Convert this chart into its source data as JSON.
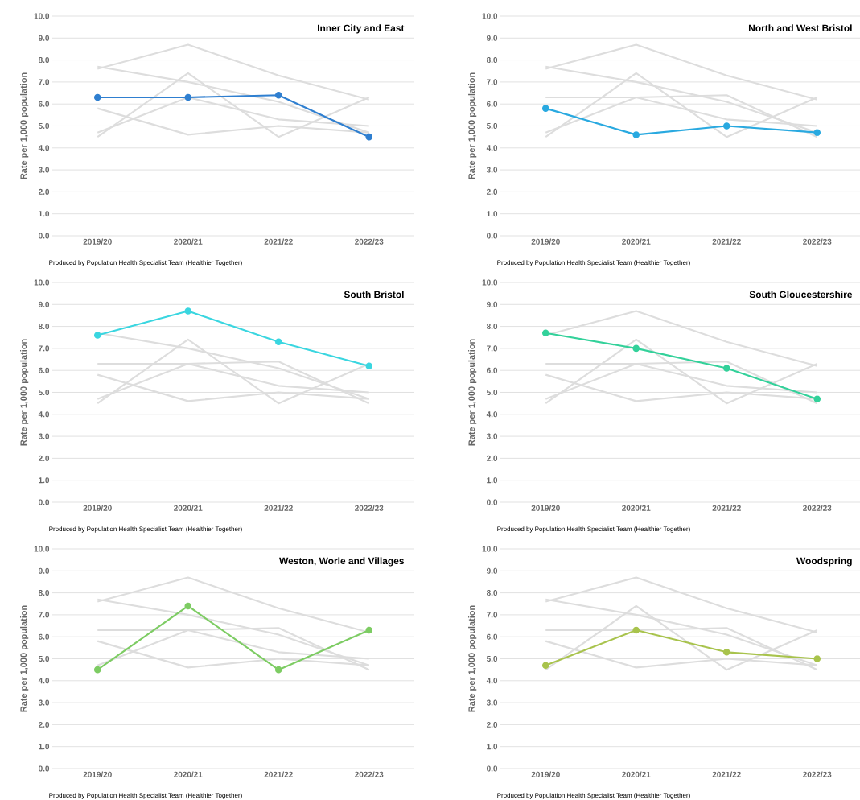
{
  "chart_data": [
    {
      "type": "line",
      "title": "Inner City and East",
      "ylabel": "Rate per 1,000 population",
      "categories": [
        "2019/20",
        "2020/21",
        "2021/22",
        "2022/23"
      ],
      "ylim": [
        0,
        10
      ],
      "yticks": [
        {
          "value": 0,
          "label": "0.0"
        },
        {
          "value": 1,
          "label": "1.0"
        },
        {
          "value": 2,
          "label": "2.0"
        },
        {
          "value": 3,
          "label": "3.0"
        },
        {
          "value": 4,
          "label": "4.0"
        },
        {
          "value": 5,
          "label": "5.0"
        },
        {
          "value": 6,
          "label": "6.0"
        },
        {
          "value": 7,
          "label": "7.0"
        },
        {
          "value": 8,
          "label": "8.0"
        },
        {
          "value": 9,
          "label": "9.0"
        },
        {
          "value": 10,
          "label": "10.0"
        }
      ],
      "grid": "y",
      "annotations": [
        "Produced by Population Health Specialist Team (Healthier Together)"
      ],
      "series": [
        {
          "color": "#dddddd",
          "values": [
            5.8,
            4.6,
            5.0,
            4.7
          ],
          "marker": "none"
        },
        {
          "color": "#dddddd",
          "values": [
            7.6,
            8.7,
            7.3,
            6.2
          ],
          "marker": "none"
        },
        {
          "color": "#dddddd",
          "values": [
            7.7,
            7.0,
            6.1,
            4.7
          ],
          "marker": "none"
        },
        {
          "color": "#dddddd",
          "values": [
            4.5,
            7.4,
            4.5,
            6.3
          ],
          "marker": "none"
        },
        {
          "color": "#dddddd",
          "values": [
            4.7,
            6.3,
            5.3,
            5.0
          ],
          "marker": "none"
        },
        {
          "color": "#2f7fd0",
          "values": [
            6.3,
            6.3,
            6.4,
            4.5
          ],
          "marker": "circle"
        }
      ]
    },
    {
      "type": "line",
      "title": "North and West Bristol",
      "ylabel": "Rate per 1,000 population",
      "categories": [
        "2019/20",
        "2020/21",
        "2021/22",
        "2022/23"
      ],
      "ylim": [
        0,
        10
      ],
      "yticks": [
        {
          "value": 0,
          "label": "0.0"
        },
        {
          "value": 1,
          "label": "1.0"
        },
        {
          "value": 2,
          "label": "2.0"
        },
        {
          "value": 3,
          "label": "3.0"
        },
        {
          "value": 4,
          "label": "4.0"
        },
        {
          "value": 5,
          "label": "5.0"
        },
        {
          "value": 6,
          "label": "6.0"
        },
        {
          "value": 7,
          "label": "7.0"
        },
        {
          "value": 8,
          "label": "8.0"
        },
        {
          "value": 9,
          "label": "9.0"
        },
        {
          "value": 10,
          "label": "10.0"
        }
      ],
      "grid": "y",
      "annotations": [
        "Produced by Population Health Specialist Team (Healthier Together)"
      ],
      "series": [
        {
          "color": "#dddddd",
          "values": [
            6.3,
            6.3,
            6.4,
            4.5
          ],
          "marker": "none"
        },
        {
          "color": "#dddddd",
          "values": [
            7.6,
            8.7,
            7.3,
            6.2
          ],
          "marker": "none"
        },
        {
          "color": "#dddddd",
          "values": [
            7.7,
            7.0,
            6.1,
            4.7
          ],
          "marker": "none"
        },
        {
          "color": "#dddddd",
          "values": [
            4.5,
            7.4,
            4.5,
            6.3
          ],
          "marker": "none"
        },
        {
          "color": "#dddddd",
          "values": [
            4.7,
            6.3,
            5.3,
            5.0
          ],
          "marker": "none"
        },
        {
          "color": "#29a9e0",
          "values": [
            5.8,
            4.6,
            5.0,
            4.7
          ],
          "marker": "circle"
        }
      ]
    },
    {
      "type": "line",
      "title": "South Bristol",
      "ylabel": "Rate per 1,000 population",
      "categories": [
        "2019/20",
        "2020/21",
        "2021/22",
        "2022/23"
      ],
      "ylim": [
        0,
        10
      ],
      "yticks": [
        {
          "value": 0,
          "label": "0.0"
        },
        {
          "value": 1,
          "label": "1.0"
        },
        {
          "value": 2,
          "label": "2.0"
        },
        {
          "value": 3,
          "label": "3.0"
        },
        {
          "value": 4,
          "label": "4.0"
        },
        {
          "value": 5,
          "label": "5.0"
        },
        {
          "value": 6,
          "label": "6.0"
        },
        {
          "value": 7,
          "label": "7.0"
        },
        {
          "value": 8,
          "label": "8.0"
        },
        {
          "value": 9,
          "label": "9.0"
        },
        {
          "value": 10,
          "label": "10.0"
        }
      ],
      "grid": "y",
      "annotations": [
        "Produced by Population Health Specialist Team (Healthier Together)"
      ],
      "series": [
        {
          "color": "#dddddd",
          "values": [
            6.3,
            6.3,
            6.4,
            4.5
          ],
          "marker": "none"
        },
        {
          "color": "#dddddd",
          "values": [
            5.8,
            4.6,
            5.0,
            4.7
          ],
          "marker": "none"
        },
        {
          "color": "#dddddd",
          "values": [
            7.7,
            7.0,
            6.1,
            4.7
          ],
          "marker": "none"
        },
        {
          "color": "#dddddd",
          "values": [
            4.5,
            7.4,
            4.5,
            6.3
          ],
          "marker": "none"
        },
        {
          "color": "#dddddd",
          "values": [
            4.7,
            6.3,
            5.3,
            5.0
          ],
          "marker": "none"
        },
        {
          "color": "#3ad6e0",
          "values": [
            7.6,
            8.7,
            7.3,
            6.2
          ],
          "marker": "circle"
        }
      ]
    },
    {
      "type": "line",
      "title": "South Gloucestershire",
      "ylabel": "Rate per 1,000 population",
      "categories": [
        "2019/20",
        "2020/21",
        "2021/22",
        "2022/23"
      ],
      "ylim": [
        0,
        10
      ],
      "yticks": [
        {
          "value": 0,
          "label": "0.0"
        },
        {
          "value": 1,
          "label": "1.0"
        },
        {
          "value": 2,
          "label": "2.0"
        },
        {
          "value": 3,
          "label": "3.0"
        },
        {
          "value": 4,
          "label": "4.0"
        },
        {
          "value": 5,
          "label": "5.0"
        },
        {
          "value": 6,
          "label": "6.0"
        },
        {
          "value": 7,
          "label": "7.0"
        },
        {
          "value": 8,
          "label": "8.0"
        },
        {
          "value": 9,
          "label": "9.0"
        },
        {
          "value": 10,
          "label": "10.0"
        }
      ],
      "grid": "y",
      "annotations": [
        "Produced by Population Health Specialist Team (Healthier Together)"
      ],
      "series": [
        {
          "color": "#dddddd",
          "values": [
            6.3,
            6.3,
            6.4,
            4.5
          ],
          "marker": "none"
        },
        {
          "color": "#dddddd",
          "values": [
            5.8,
            4.6,
            5.0,
            4.7
          ],
          "marker": "none"
        },
        {
          "color": "#dddddd",
          "values": [
            7.6,
            8.7,
            7.3,
            6.2
          ],
          "marker": "none"
        },
        {
          "color": "#dddddd",
          "values": [
            4.5,
            7.4,
            4.5,
            6.3
          ],
          "marker": "none"
        },
        {
          "color": "#dddddd",
          "values": [
            4.7,
            6.3,
            5.3,
            5.0
          ],
          "marker": "none"
        },
        {
          "color": "#33d19a",
          "values": [
            7.7,
            7.0,
            6.1,
            4.7
          ],
          "marker": "circle"
        }
      ]
    },
    {
      "type": "line",
      "title": "Weston, Worle and Villages",
      "ylabel": "Rate per 1,000 population",
      "categories": [
        "2019/20",
        "2020/21",
        "2021/22",
        "2022/23"
      ],
      "ylim": [
        0,
        10
      ],
      "yticks": [
        {
          "value": 0,
          "label": "0.0"
        },
        {
          "value": 1,
          "label": "1.0"
        },
        {
          "value": 2,
          "label": "2.0"
        },
        {
          "value": 3,
          "label": "3.0"
        },
        {
          "value": 4,
          "label": "4.0"
        },
        {
          "value": 5,
          "label": "5.0"
        },
        {
          "value": 6,
          "label": "6.0"
        },
        {
          "value": 7,
          "label": "7.0"
        },
        {
          "value": 8,
          "label": "8.0"
        },
        {
          "value": 9,
          "label": "9.0"
        },
        {
          "value": 10,
          "label": "10.0"
        }
      ],
      "grid": "y",
      "annotations": [
        "Produced by Population Health Specialist Team (Healthier Together)"
      ],
      "series": [
        {
          "color": "#dddddd",
          "values": [
            6.3,
            6.3,
            6.4,
            4.5
          ],
          "marker": "none"
        },
        {
          "color": "#dddddd",
          "values": [
            5.8,
            4.6,
            5.0,
            4.7
          ],
          "marker": "none"
        },
        {
          "color": "#dddddd",
          "values": [
            7.6,
            8.7,
            7.3,
            6.2
          ],
          "marker": "none"
        },
        {
          "color": "#dddddd",
          "values": [
            7.7,
            7.0,
            6.1,
            4.7
          ],
          "marker": "none"
        },
        {
          "color": "#dddddd",
          "values": [
            4.7,
            6.3,
            5.3,
            5.0
          ],
          "marker": "none"
        },
        {
          "color": "#7dcc63",
          "values": [
            4.5,
            7.4,
            4.5,
            6.3
          ],
          "marker": "circle"
        }
      ]
    },
    {
      "type": "line",
      "title": "Woodspring",
      "ylabel": "Rate per 1,000 population",
      "categories": [
        "2019/20",
        "2020/21",
        "2021/22",
        "2022/23"
      ],
      "ylim": [
        0,
        10
      ],
      "yticks": [
        {
          "value": 0,
          "label": "0.0"
        },
        {
          "value": 1,
          "label": "1.0"
        },
        {
          "value": 2,
          "label": "2.0"
        },
        {
          "value": 3,
          "label": "3.0"
        },
        {
          "value": 4,
          "label": "4.0"
        },
        {
          "value": 5,
          "label": "5.0"
        },
        {
          "value": 6,
          "label": "6.0"
        },
        {
          "value": 7,
          "label": "7.0"
        },
        {
          "value": 8,
          "label": "8.0"
        },
        {
          "value": 9,
          "label": "9.0"
        },
        {
          "value": 10,
          "label": "10.0"
        }
      ],
      "grid": "y",
      "annotations": [
        "Produced by Population Health Specialist Team (Healthier Together)"
      ],
      "series": [
        {
          "color": "#dddddd",
          "values": [
            6.3,
            6.3,
            6.4,
            4.5
          ],
          "marker": "none"
        },
        {
          "color": "#dddddd",
          "values": [
            5.8,
            4.6,
            5.0,
            4.7
          ],
          "marker": "none"
        },
        {
          "color": "#dddddd",
          "values": [
            7.6,
            8.7,
            7.3,
            6.2
          ],
          "marker": "none"
        },
        {
          "color": "#dddddd",
          "values": [
            7.7,
            7.0,
            6.1,
            4.7
          ],
          "marker": "none"
        },
        {
          "color": "#dddddd",
          "values": [
            4.5,
            7.4,
            4.5,
            6.3
          ],
          "marker": "none"
        },
        {
          "color": "#a8c34c",
          "values": [
            4.7,
            6.3,
            5.3,
            5.0
          ],
          "marker": "circle"
        }
      ]
    }
  ]
}
